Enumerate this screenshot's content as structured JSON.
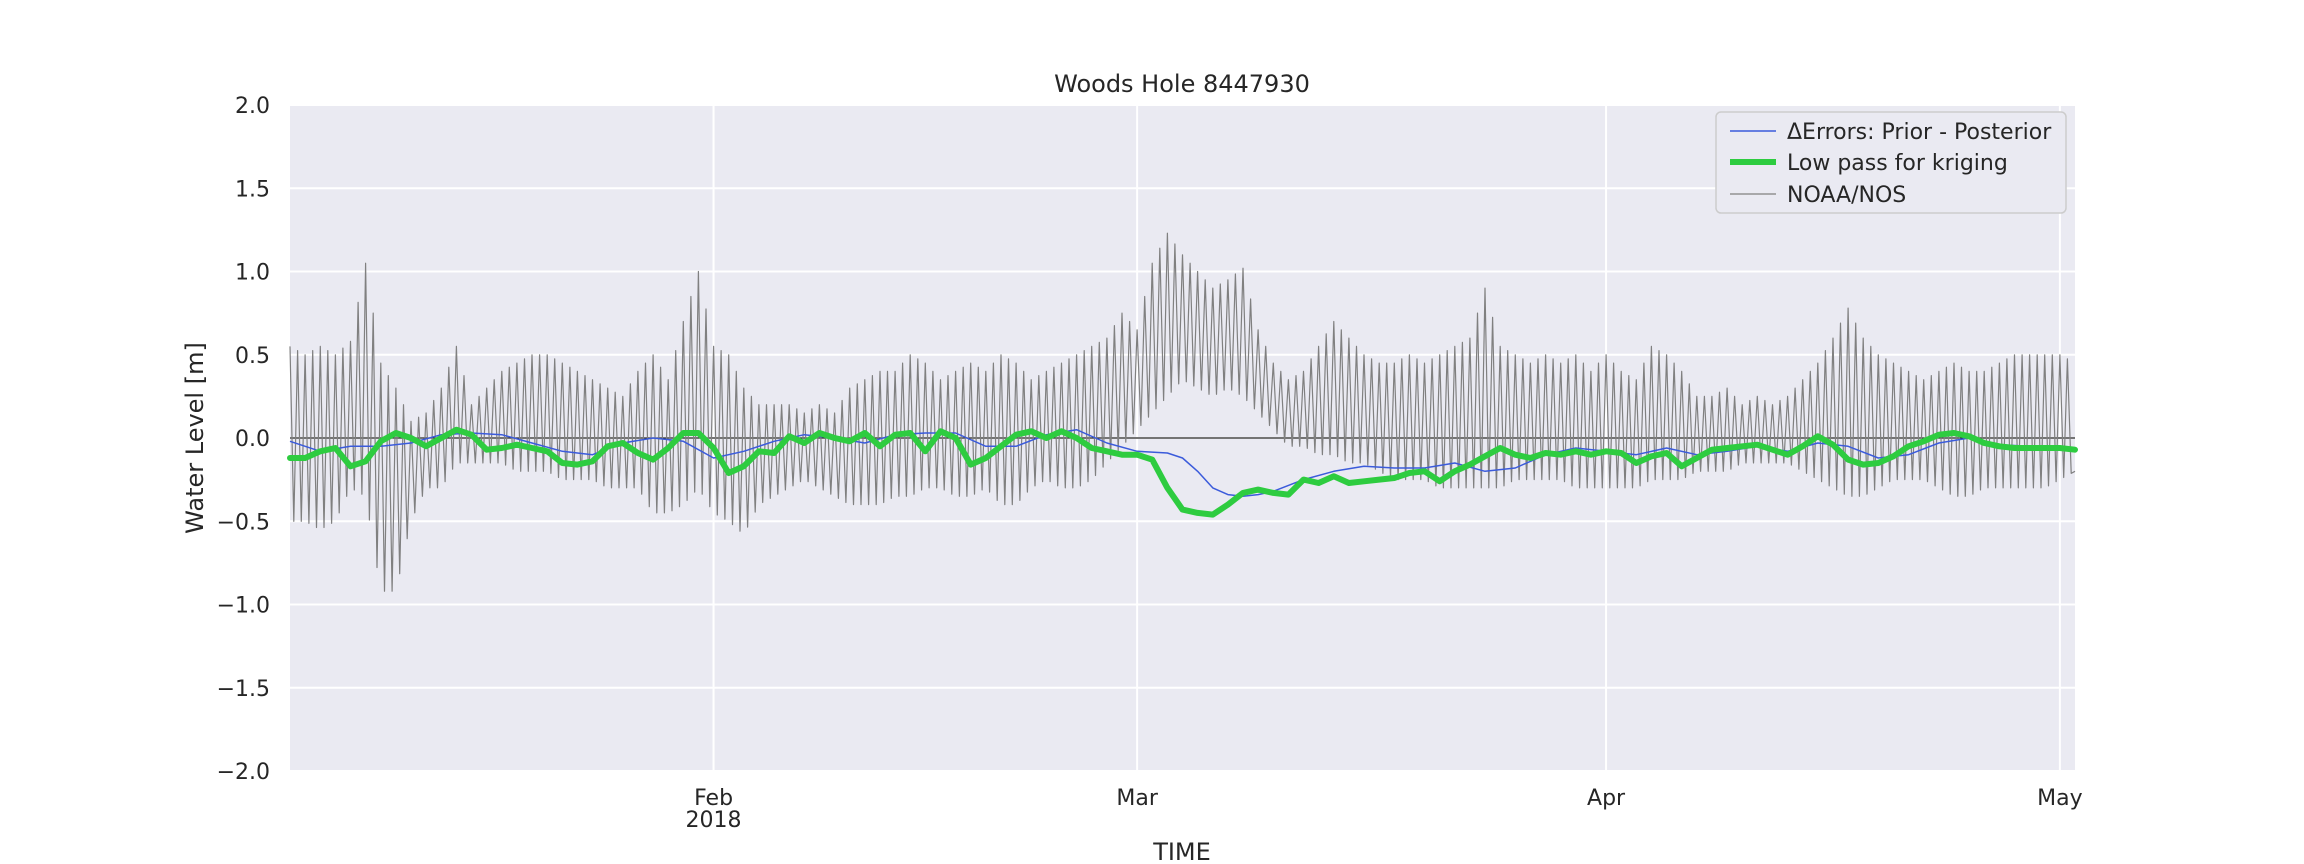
{
  "chart_data": {
    "type": "line",
    "title": "Woods Hole  8447930",
    "xlabel": "TIME",
    "ylabel": "Water Level [m]",
    "xlim": [
      "2018-01-04",
      "2018-05-02"
    ],
    "ylim": [
      -2.0,
      2.0
    ],
    "grid": true,
    "legend_position": "top-right",
    "background_color": "#eaeaf2",
    "zero_line": true,
    "y_ticks": [
      {
        "value": 2.0,
        "label": "2.0"
      },
      {
        "value": 1.5,
        "label": "1.5"
      },
      {
        "value": 1.0,
        "label": "1.0"
      },
      {
        "value": 0.5,
        "label": "0.5"
      },
      {
        "value": 0.0,
        "label": "0.0"
      },
      {
        "value": -0.5,
        "label": "−0.5"
      },
      {
        "value": -1.0,
        "label": "−1.0"
      },
      {
        "value": -1.5,
        "label": "−1.5"
      },
      {
        "value": -2.0,
        "label": "−2.0"
      }
    ],
    "x_ticks": [
      {
        "date": "2018-02-01",
        "label": "Feb",
        "sublabel": "2018"
      },
      {
        "date": "2018-03-01",
        "label": "Mar",
        "sublabel": ""
      },
      {
        "date": "2018-04-01",
        "label": "Apr",
        "sublabel": ""
      },
      {
        "date": "2018-05-01",
        "label": "May",
        "sublabel": ""
      }
    ],
    "series": [
      {
        "name": "NOAA/NOS",
        "color": "#808080",
        "x": [
          "2018-01-04",
          "2018-01-05",
          "2018-01-06",
          "2018-01-07",
          "2018-01-08",
          "2018-01-09",
          "2018-01-10",
          "2018-01-11",
          "2018-01-12",
          "2018-01-13",
          "2018-01-14",
          "2018-01-15",
          "2018-01-16",
          "2018-01-17",
          "2018-01-18",
          "2018-01-19",
          "2018-01-20",
          "2018-01-21",
          "2018-01-22",
          "2018-01-23",
          "2018-01-24",
          "2018-01-25",
          "2018-01-26",
          "2018-01-27",
          "2018-01-28",
          "2018-01-29",
          "2018-01-30",
          "2018-01-31",
          "2018-02-01",
          "2018-02-02",
          "2018-02-03",
          "2018-02-04",
          "2018-02-05",
          "2018-02-06",
          "2018-02-07",
          "2018-02-08",
          "2018-02-09",
          "2018-02-10",
          "2018-02-11",
          "2018-02-12",
          "2018-02-13",
          "2018-02-14",
          "2018-02-15",
          "2018-02-16",
          "2018-02-17",
          "2018-02-18",
          "2018-02-19",
          "2018-02-20",
          "2018-02-21",
          "2018-02-22",
          "2018-02-23",
          "2018-02-24",
          "2018-02-25",
          "2018-02-26",
          "2018-02-27",
          "2018-02-28",
          "2018-03-01",
          "2018-03-02",
          "2018-03-03",
          "2018-03-04",
          "2018-03-05",
          "2018-03-06",
          "2018-03-07",
          "2018-03-08",
          "2018-03-09",
          "2018-03-10",
          "2018-03-11",
          "2018-03-12",
          "2018-03-13",
          "2018-03-14",
          "2018-03-15",
          "2018-03-16",
          "2018-03-17",
          "2018-03-18",
          "2018-03-19",
          "2018-03-20",
          "2018-03-21",
          "2018-03-22",
          "2018-03-23",
          "2018-03-24",
          "2018-03-25",
          "2018-03-26",
          "2018-03-27",
          "2018-03-28",
          "2018-03-29",
          "2018-03-30",
          "2018-03-31",
          "2018-04-01",
          "2018-04-02",
          "2018-04-03",
          "2018-04-04",
          "2018-04-05",
          "2018-04-06",
          "2018-04-07",
          "2018-04-08",
          "2018-04-09",
          "2018-04-10",
          "2018-04-11",
          "2018-04-12",
          "2018-04-13",
          "2018-04-14",
          "2018-04-15",
          "2018-04-16",
          "2018-04-17",
          "2018-04-18",
          "2018-04-19",
          "2018-04-20",
          "2018-04-21",
          "2018-04-22",
          "2018-04-23",
          "2018-04-24",
          "2018-04-25",
          "2018-04-26",
          "2018-04-27",
          "2018-04-28",
          "2018-04-29",
          "2018-04-30",
          "2018-05-01",
          "2018-05-02"
        ],
        "high": [
          0.55,
          0.5,
          0.55,
          0.5,
          0.58,
          1.05,
          0.45,
          0.3,
          0.1,
          0.15,
          0.3,
          0.55,
          0.2,
          0.3,
          0.4,
          0.45,
          0.5,
          0.5,
          0.45,
          0.4,
          0.35,
          0.3,
          0.25,
          0.4,
          0.5,
          0.35,
          0.7,
          1.0,
          0.55,
          0.5,
          0.3,
          0.2,
          0.2,
          0.2,
          0.15,
          0.2,
          0.15,
          0.3,
          0.35,
          0.4,
          0.4,
          0.5,
          0.45,
          0.35,
          0.4,
          0.45,
          0.4,
          0.5,
          0.45,
          0.35,
          0.4,
          0.45,
          0.5,
          0.55,
          0.6,
          0.75,
          0.65,
          1.05,
          1.23,
          1.1,
          1.0,
          0.9,
          0.95,
          1.02,
          0.65,
          0.45,
          0.35,
          0.4,
          0.55,
          0.7,
          0.6,
          0.5,
          0.45,
          0.45,
          0.5,
          0.45,
          0.5,
          0.55,
          0.6,
          0.9,
          0.55,
          0.5,
          0.45,
          0.5,
          0.45,
          0.5,
          0.4,
          0.5,
          0.4,
          0.35,
          0.55,
          0.5,
          0.4,
          0.25,
          0.25,
          0.3,
          0.2,
          0.25,
          0.2,
          0.25,
          0.35,
          0.45,
          0.6,
          0.78,
          0.6,
          0.5,
          0.45,
          0.4,
          0.35,
          0.4,
          0.45,
          0.4,
          0.4,
          0.45,
          0.5,
          0.5,
          0.5,
          0.5,
          0.45
        ],
        "low": [
          -0.5,
          -0.5,
          -0.55,
          -0.5,
          -0.3,
          -0.35,
          -0.92,
          -0.92,
          -0.5,
          -0.3,
          -0.3,
          -0.15,
          -0.15,
          -0.15,
          -0.15,
          -0.2,
          -0.2,
          -0.2,
          -0.25,
          -0.25,
          -0.25,
          -0.3,
          -0.3,
          -0.3,
          -0.45,
          -0.45,
          -0.4,
          -0.3,
          -0.45,
          -0.5,
          -0.58,
          -0.4,
          -0.35,
          -0.3,
          -0.25,
          -0.3,
          -0.35,
          -0.4,
          -0.4,
          -0.4,
          -0.35,
          -0.35,
          -0.3,
          -0.3,
          -0.35,
          -0.35,
          -0.3,
          -0.4,
          -0.4,
          -0.3,
          -0.25,
          -0.3,
          -0.3,
          -0.25,
          -0.15,
          -0.05,
          0.05,
          0.15,
          0.25,
          0.35,
          0.3,
          0.25,
          0.3,
          0.25,
          0.15,
          0.05,
          -0.05,
          -0.05,
          -0.1,
          -0.1,
          -0.15,
          -0.15,
          -0.2,
          -0.25,
          -0.25,
          -0.25,
          -0.3,
          -0.3,
          -0.3,
          -0.3,
          -0.3,
          -0.25,
          -0.25,
          -0.25,
          -0.25,
          -0.3,
          -0.3,
          -0.3,
          -0.3,
          -0.3,
          -0.25,
          -0.25,
          -0.25,
          -0.2,
          -0.2,
          -0.2,
          -0.15,
          -0.15,
          -0.15,
          -0.15,
          -0.2,
          -0.25,
          -0.3,
          -0.35,
          -0.35,
          -0.3,
          -0.25,
          -0.25,
          -0.25,
          -0.3,
          -0.35,
          -0.35,
          -0.3,
          -0.3,
          -0.3,
          -0.3,
          -0.3,
          -0.25,
          -0.2
        ]
      },
      {
        "name": "ΔErrors: Prior - Posterior",
        "color": "#3b5bdb",
        "x": [
          "2018-01-04",
          "2018-01-06",
          "2018-01-08",
          "2018-01-10",
          "2018-01-12",
          "2018-01-14",
          "2018-01-16",
          "2018-01-18",
          "2018-01-20",
          "2018-01-22",
          "2018-01-24",
          "2018-01-26",
          "2018-01-28",
          "2018-01-30",
          "2018-02-01",
          "2018-02-03",
          "2018-02-05",
          "2018-02-07",
          "2018-02-09",
          "2018-02-11",
          "2018-02-13",
          "2018-02-15",
          "2018-02-17",
          "2018-02-19",
          "2018-02-21",
          "2018-02-23",
          "2018-02-25",
          "2018-02-27",
          "2018-03-01",
          "2018-03-03",
          "2018-03-04",
          "2018-03-05",
          "2018-03-06",
          "2018-03-07",
          "2018-03-08",
          "2018-03-09",
          "2018-03-10",
          "2018-03-12",
          "2018-03-14",
          "2018-03-16",
          "2018-03-18",
          "2018-03-20",
          "2018-03-22",
          "2018-03-24",
          "2018-03-26",
          "2018-03-28",
          "2018-03-30",
          "2018-04-01",
          "2018-04-03",
          "2018-04-05",
          "2018-04-07",
          "2018-04-09",
          "2018-04-11",
          "2018-04-13",
          "2018-04-15",
          "2018-04-17",
          "2018-04-19",
          "2018-04-21",
          "2018-04-23",
          "2018-04-25",
          "2018-04-27",
          "2018-04-29",
          "2018-05-01",
          "2018-05-02"
        ],
        "y": [
          -0.02,
          -0.08,
          -0.05,
          -0.05,
          -0.03,
          0.02,
          0.03,
          0.02,
          -0.03,
          -0.08,
          -0.1,
          -0.03,
          0.0,
          -0.02,
          -0.12,
          -0.08,
          -0.02,
          0.02,
          0.0,
          -0.03,
          0.02,
          0.03,
          0.03,
          -0.05,
          -0.05,
          0.02,
          0.05,
          -0.03,
          -0.08,
          -0.09,
          -0.12,
          -0.2,
          -0.3,
          -0.34,
          -0.35,
          -0.34,
          -0.32,
          -0.25,
          -0.2,
          -0.17,
          -0.18,
          -0.18,
          -0.15,
          -0.2,
          -0.18,
          -0.1,
          -0.06,
          -0.08,
          -0.1,
          -0.06,
          -0.1,
          -0.08,
          -0.05,
          -0.08,
          -0.03,
          -0.05,
          -0.12,
          -0.1,
          -0.03,
          0.0,
          -0.04,
          -0.05,
          -0.06,
          -0.08
        ]
      },
      {
        "name": "Low pass for kriging",
        "color": "#2ecc40",
        "x": [
          "2018-01-04",
          "2018-01-05",
          "2018-01-06",
          "2018-01-07",
          "2018-01-08",
          "2018-01-09",
          "2018-01-10",
          "2018-01-11",
          "2018-01-12",
          "2018-01-13",
          "2018-01-14",
          "2018-01-15",
          "2018-01-16",
          "2018-01-17",
          "2018-01-18",
          "2018-01-19",
          "2018-01-20",
          "2018-01-21",
          "2018-01-22",
          "2018-01-23",
          "2018-01-24",
          "2018-01-25",
          "2018-01-26",
          "2018-01-27",
          "2018-01-28",
          "2018-01-29",
          "2018-01-30",
          "2018-01-31",
          "2018-02-01",
          "2018-02-02",
          "2018-02-03",
          "2018-02-04",
          "2018-02-05",
          "2018-02-06",
          "2018-02-07",
          "2018-02-08",
          "2018-02-09",
          "2018-02-10",
          "2018-02-11",
          "2018-02-12",
          "2018-02-13",
          "2018-02-14",
          "2018-02-15",
          "2018-02-16",
          "2018-02-17",
          "2018-02-18",
          "2018-02-19",
          "2018-02-20",
          "2018-02-21",
          "2018-02-22",
          "2018-02-23",
          "2018-02-24",
          "2018-02-25",
          "2018-02-26",
          "2018-02-27",
          "2018-02-28",
          "2018-03-01",
          "2018-03-02",
          "2018-03-03",
          "2018-03-04",
          "2018-03-05",
          "2018-03-06",
          "2018-03-07",
          "2018-03-08",
          "2018-03-09",
          "2018-03-10",
          "2018-03-11",
          "2018-03-12",
          "2018-03-13",
          "2018-03-14",
          "2018-03-15",
          "2018-03-16",
          "2018-03-17",
          "2018-03-18",
          "2018-03-19",
          "2018-03-20",
          "2018-03-21",
          "2018-03-22",
          "2018-03-23",
          "2018-03-24",
          "2018-03-25",
          "2018-03-26",
          "2018-03-27",
          "2018-03-28",
          "2018-03-29",
          "2018-03-30",
          "2018-03-31",
          "2018-04-01",
          "2018-04-02",
          "2018-04-03",
          "2018-04-04",
          "2018-04-05",
          "2018-04-06",
          "2018-04-07",
          "2018-04-08",
          "2018-04-09",
          "2018-04-10",
          "2018-04-11",
          "2018-04-12",
          "2018-04-13",
          "2018-04-14",
          "2018-04-15",
          "2018-04-16",
          "2018-04-17",
          "2018-04-18",
          "2018-04-19",
          "2018-04-20",
          "2018-04-21",
          "2018-04-22",
          "2018-04-23",
          "2018-04-24",
          "2018-04-25",
          "2018-04-26",
          "2018-04-27",
          "2018-04-28",
          "2018-04-29",
          "2018-04-30",
          "2018-05-01",
          "2018-05-02"
        ],
        "y": [
          -0.12,
          -0.12,
          -0.08,
          -0.06,
          -0.17,
          -0.14,
          -0.02,
          0.03,
          0.0,
          -0.05,
          0.0,
          0.05,
          0.02,
          -0.07,
          -0.06,
          -0.04,
          -0.06,
          -0.08,
          -0.15,
          -0.16,
          -0.14,
          -0.05,
          -0.03,
          -0.09,
          -0.13,
          -0.06,
          0.03,
          0.03,
          -0.06,
          -0.21,
          -0.17,
          -0.08,
          -0.09,
          0.01,
          -0.03,
          0.03,
          0.0,
          -0.02,
          0.03,
          -0.05,
          0.02,
          0.03,
          -0.08,
          0.04,
          0.0,
          -0.16,
          -0.12,
          -0.05,
          0.02,
          0.04,
          0.0,
          0.04,
          0.0,
          -0.06,
          -0.08,
          -0.1,
          -0.1,
          -0.13,
          -0.3,
          -0.43,
          -0.45,
          -0.46,
          -0.4,
          -0.33,
          -0.31,
          -0.33,
          -0.34,
          -0.25,
          -0.27,
          -0.23,
          -0.27,
          -0.26,
          -0.25,
          -0.24,
          -0.21,
          -0.2,
          -0.26,
          -0.2,
          -0.16,
          -0.11,
          -0.06,
          -0.1,
          -0.12,
          -0.09,
          -0.1,
          -0.08,
          -0.1,
          -0.08,
          -0.09,
          -0.15,
          -0.11,
          -0.09,
          -0.17,
          -0.12,
          -0.07,
          -0.06,
          -0.05,
          -0.04,
          -0.07,
          -0.1,
          -0.05,
          0.01,
          -0.04,
          -0.13,
          -0.16,
          -0.15,
          -0.11,
          -0.05,
          -0.02,
          0.02,
          0.03,
          0.01,
          -0.03,
          -0.05,
          -0.06,
          -0.06,
          -0.06,
          -0.06,
          -0.07
        ]
      }
    ]
  }
}
